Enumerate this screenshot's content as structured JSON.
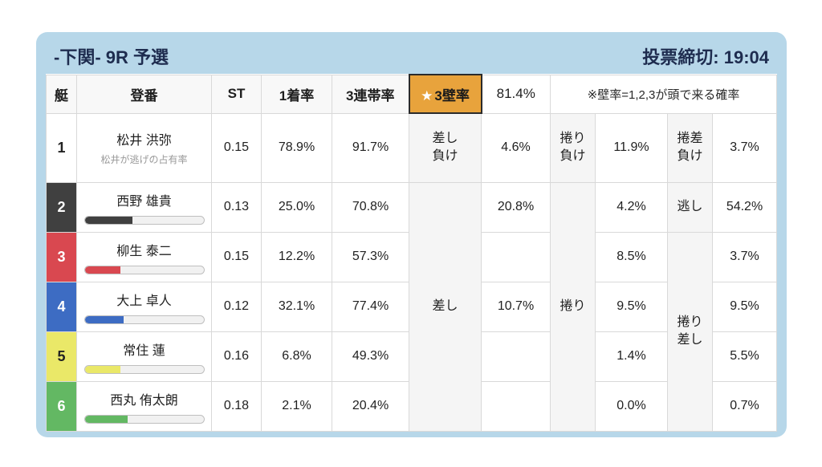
{
  "titlebar": {
    "race_title": "-下関- 9R 予選",
    "deadline": "投票締切: 19:04"
  },
  "table": {
    "headers": {
      "boat": "艇",
      "racer": "登番",
      "st": "ST",
      "win_rate": "1着率",
      "top3_rate": "3連帯率",
      "wall_star": "★",
      "wall_label": "3壁率",
      "wall_value": "81.4%",
      "note": "※壁率=1,2,3が頭で来る確率"
    },
    "merged_labels": {
      "sashi": "差し",
      "makuri": "捲り",
      "makuri_sashi": "捲り\n差し"
    },
    "rows": [
      {
        "boat": "1",
        "name": "松井 洪弥",
        "subtitle": "松井が逃げの占有率",
        "st": "0.15",
        "win_rate": "78.9%",
        "top3_rate": "91.7%",
        "label1": "差し\n負け",
        "value1": "4.6%",
        "label2": "捲り\n負け",
        "value2": "11.9%",
        "label3": "捲差\n負け",
        "value3": "3.7%"
      },
      {
        "boat": "2",
        "name": "西野 雄貴",
        "bar_pct": 40,
        "st": "0.13",
        "win_rate": "25.0%",
        "top3_rate": "70.8%",
        "value1": "20.8%",
        "value2": "4.2%",
        "label3": "逃し",
        "value3": "54.2%"
      },
      {
        "boat": "3",
        "name": "柳生 泰二",
        "bar_pct": 30,
        "st": "0.15",
        "win_rate": "12.2%",
        "top3_rate": "57.3%",
        "value2": "8.5%",
        "value3": "3.7%"
      },
      {
        "boat": "4",
        "name": "大上 卓人",
        "bar_pct": 33,
        "st": "0.12",
        "win_rate": "32.1%",
        "top3_rate": "77.4%",
        "value1": "10.7%",
        "value2": "9.5%",
        "value3": "9.5%"
      },
      {
        "boat": "5",
        "name": "常住 蓮",
        "bar_pct": 30,
        "st": "0.16",
        "win_rate": "6.8%",
        "top3_rate": "49.3%",
        "value2": "1.4%",
        "value3": "5.5%"
      },
      {
        "boat": "6",
        "name": "西丸 侑太朗",
        "bar_pct": 36,
        "st": "0.18",
        "win_rate": "2.1%",
        "top3_rate": "20.4%",
        "value2": "0.0%",
        "value3": "0.7%"
      }
    ]
  },
  "colors": {
    "panel_bg": "#b7d7e9",
    "title_text": "#1e2c4f",
    "wall_header_bg": "#e8a33c",
    "wall_header_border": "#2b2b2b",
    "boats": {
      "1": {
        "bg": "#ffffff",
        "fg": "#222222"
      },
      "2": {
        "bg": "#404040",
        "fg": "#ffffff"
      },
      "3": {
        "bg": "#d94850",
        "fg": "#ffffff"
      },
      "4": {
        "bg": "#3d6cc3",
        "fg": "#ffffff"
      },
      "5": {
        "bg": "#eae868",
        "fg": "#222222"
      },
      "6": {
        "bg": "#63b863",
        "fg": "#ffffff"
      }
    }
  }
}
